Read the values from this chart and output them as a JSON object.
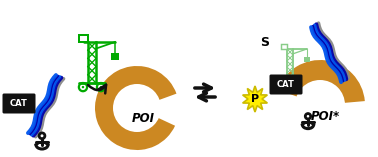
{
  "bg_color": "#ffffff",
  "poi_color": "#cc8822",
  "crane_green": "#00aa00",
  "crane_light_green": "#88cc88",
  "dna_blue": "#0055ee",
  "dna_navy": "#0000aa",
  "dna_gray": "#888888",
  "cat_bg": "#111111",
  "cat_text": "#ffffff",
  "anchor_color": "#111111",
  "product_yellow": "#ffee00",
  "product_outline": "#ccbb00",
  "s_label": "S",
  "p_label": "P",
  "cat_label": "CAT",
  "poi_label": "POI",
  "poi_star_label": "POI*",
  "figsize": [
    3.78,
    1.57
  ],
  "dpi": 100
}
